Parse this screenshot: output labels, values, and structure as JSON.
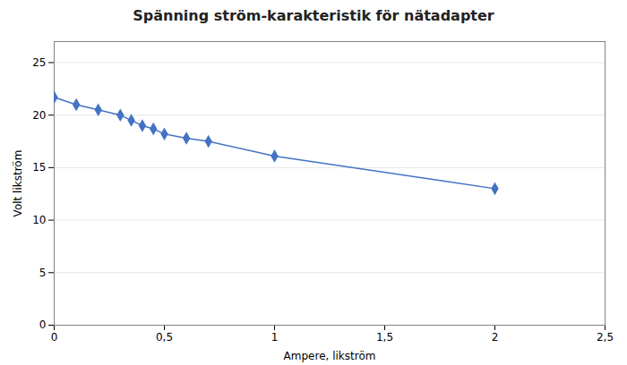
{
  "chart_data": {
    "type": "line",
    "title": "Spänning ström-karakteristik för nätadapter",
    "xlabel": "Ampere, likström",
    "ylabel": "Volt likström",
    "x": [
      0,
      0.1,
      0.2,
      0.3,
      0.35,
      0.4,
      0.45,
      0.5,
      0.6,
      0.7,
      1.0,
      2.0
    ],
    "y": [
      21.7,
      21.0,
      20.5,
      20.0,
      19.5,
      19.0,
      18.7,
      18.2,
      17.8,
      17.5,
      16.1,
      13.0
    ],
    "xlim": [
      0,
      2.5
    ],
    "ylim": [
      0,
      27
    ],
    "xticks": [
      0,
      {
        "value": 0.5,
        "label": "0,5"
      },
      1,
      {
        "value": 1.5,
        "label": "1,5"
      },
      2,
      {
        "value": 2.5,
        "label": "2,5"
      }
    ],
    "yticks": [
      0,
      5,
      10,
      15,
      20,
      25
    ],
    "color": "#4472C4",
    "marker": "diamond",
    "grid": "y"
  }
}
